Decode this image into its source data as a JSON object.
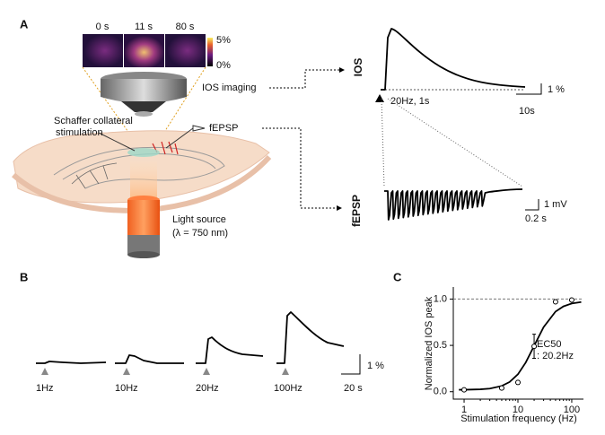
{
  "panel_a": {
    "label": "A",
    "frame_times": [
      "0 s",
      "11 s",
      "80 s"
    ],
    "colorbar": [
      "5%",
      "0%"
    ],
    "ios_imaging": "IOS imaging",
    "stimulation": [
      "Schaffer collateral",
      "stimulation"
    ],
    "recording": "fEPSP",
    "light_source": [
      "Light source",
      "(λ = 750 nm)"
    ],
    "ios_label": "IOS",
    "stimulus": "20Hz, 1s",
    "ios_scale": [
      "1 %",
      "10s"
    ],
    "fepsp_label": "fEPSP",
    "fepsp_scale": [
      "1 mV",
      "0.2 s"
    ]
  },
  "panel_b": {
    "label": "B",
    "conditions": [
      "1Hz",
      "10Hz",
      "20Hz",
      "100Hz"
    ],
    "scale": [
      "1 %",
      "20 s"
    ]
  },
  "panel_c": {
    "label": "C"
  },
  "chart_data": {
    "type": "scatter",
    "x_label": "Stimulation frequency (Hz)",
    "y_label": "Normalized IOS peak",
    "annotation": [
      "EC50",
      ": 20.2Hz"
    ],
    "x": [
      1,
      5,
      10,
      20,
      50,
      100
    ],
    "series": [
      {
        "color": "#000000",
        "values": [
          0.02,
          0.04,
          0.1,
          0.49,
          0.97,
          0.99
        ],
        "errors": [
          0.01,
          0.01,
          0.02,
          0.13,
          0.01,
          0.01
        ]
      }
    ],
    "fit": {
      "x": [
        0.8,
        1,
        2,
        3,
        5,
        7,
        10,
        14,
        20,
        30,
        50,
        70,
        100,
        150
      ],
      "values": [
        0.021,
        0.021,
        0.026,
        0.034,
        0.062,
        0.105,
        0.188,
        0.316,
        0.495,
        0.697,
        0.865,
        0.921,
        0.952,
        0.968
      ]
    },
    "reference_line": 1,
    "x_scale": "log",
    "xlim": [
      0.63,
      165
    ],
    "ylim": [
      -0.08,
      1.13
    ],
    "xticks": [
      1,
      10,
      100
    ],
    "yticks": [
      {
        "value": 0,
        "label": "0.0"
      },
      {
        "value": 0.5,
        "label": "0.5"
      },
      {
        "value": 1,
        "label": "1.0"
      }
    ]
  }
}
